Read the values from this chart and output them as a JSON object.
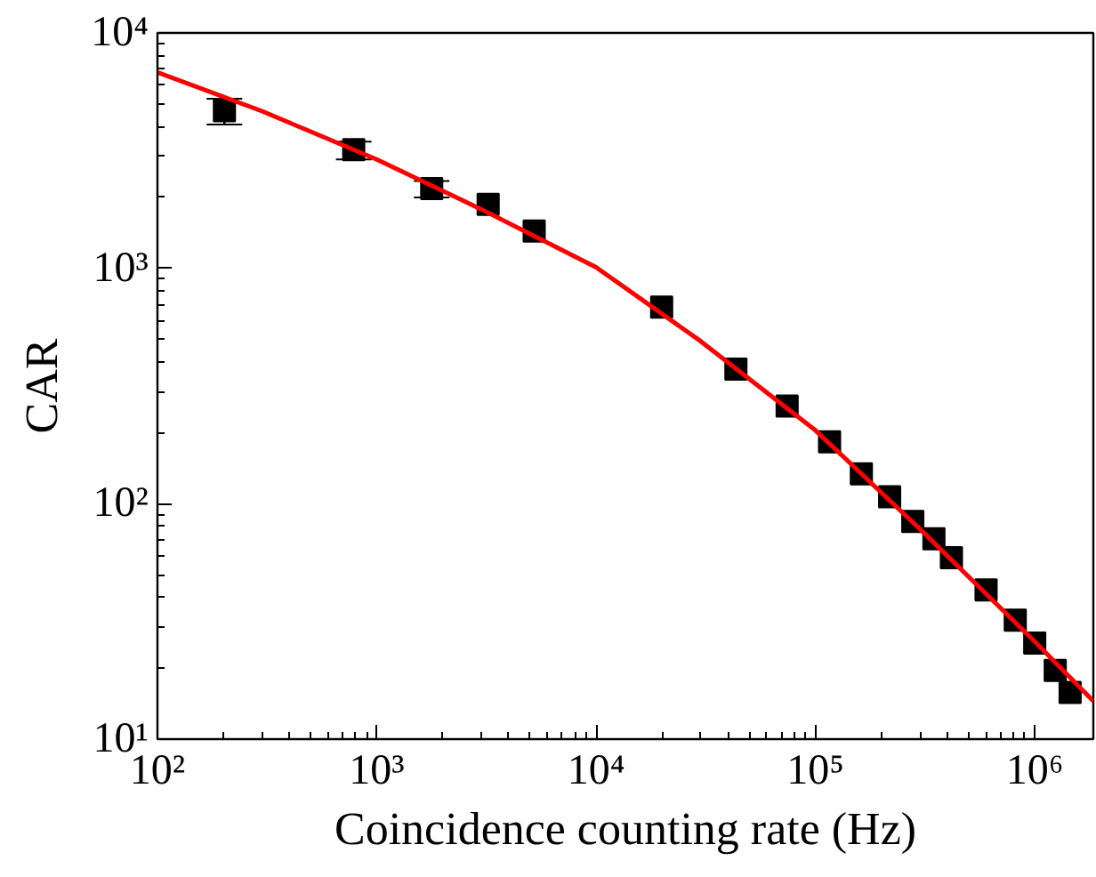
{
  "chart_data": {
    "type": "scatter",
    "xlabel": "Coincidence counting rate (Hz)",
    "ylabel": "CAR",
    "log": "xy",
    "grid": false,
    "marker": "square",
    "xlim": [
      100,
      1850000
    ],
    "ylim": [
      10,
      10000
    ],
    "xticks": [
      {
        "value": 100,
        "label": "10²"
      },
      {
        "value": 1000,
        "label": "10³"
      },
      {
        "value": 10000,
        "label": "10⁴"
      },
      {
        "value": 100000,
        "label": "10⁵"
      },
      {
        "value": 1000000,
        "label": "10⁶"
      }
    ],
    "yticks": [
      {
        "value": 10,
        "label": "10¹"
      },
      {
        "value": 100,
        "label": "10²"
      },
      {
        "value": 1000,
        "label": "10³"
      },
      {
        "value": 10000,
        "label": "10⁴"
      }
    ],
    "series": [
      {
        "color": "#000000",
        "x": [
          202,
          785,
          1780,
          3220,
          5220,
          19900,
          43400,
          74300,
          116000,
          162000,
          218000,
          278000,
          347000,
          417000,
          600000,
          815000,
          1000000,
          1240000,
          1450000
        ],
        "values": [
          4670,
          3190,
          2180,
          1870,
          1440,
          684,
          373,
          260,
          183,
          134,
          107,
          84,
          71,
          59,
          43,
          32,
          25.6,
          19.6,
          15.8
        ],
        "errors": [
          [
            4080,
            5250
          ],
          [
            2900,
            3450
          ],
          [
            2000,
            2350
          ],
          null,
          null,
          null,
          null,
          null,
          null,
          null,
          null,
          null,
          null,
          null,
          null,
          null,
          null,
          null,
          null
        ]
      },
      {
        "type": "line",
        "color": "#ff0000",
        "line_style": "solid",
        "marker": "none",
        "x": [
          100,
          300,
          1000,
          3000,
          10000,
          30000,
          100000,
          300000,
          1000000,
          1850000
        ],
        "values": [
          6800,
          4650,
          2900,
          1780,
          1010,
          490,
          205,
          78,
          26,
          14.5
        ]
      }
    ]
  }
}
